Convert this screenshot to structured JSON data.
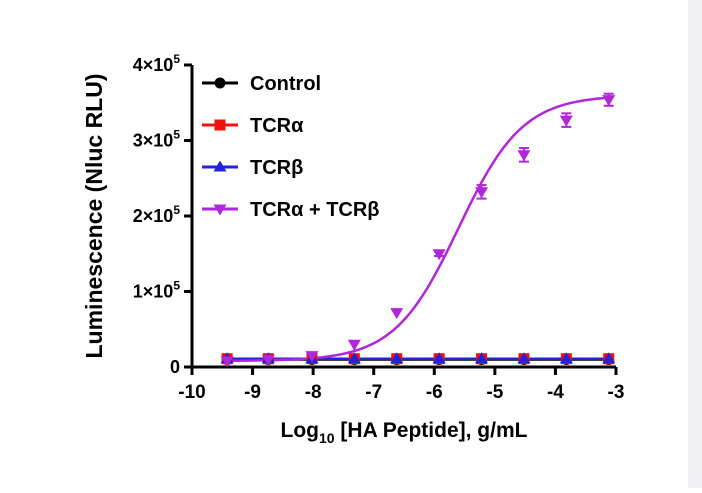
{
  "chart_data": {
    "type": "scatter",
    "xlabel_main": "Log",
    "xlabel_sub": "10",
    "xlabel_rest": " [HA Peptide], g/mL",
    "ylabel": "Luminescence (Nluc RLU)",
    "xlim": [
      -10,
      -3
    ],
    "ylim": [
      0,
      400000
    ],
    "x_ticks": [
      -10,
      -9,
      -8,
      -7,
      -6,
      -5,
      -4,
      -3
    ],
    "x_tick_labels": [
      "-10",
      "-9",
      "-8",
      "-7",
      "-6",
      "-5",
      "-4",
      "-3"
    ],
    "y_ticks": [
      {
        "value": 0,
        "label": "0",
        "exp": ""
      },
      {
        "value": 100000,
        "label": "1×10",
        "exp": "5"
      },
      {
        "value": 200000,
        "label": "2×10",
        "exp": "5"
      },
      {
        "value": 300000,
        "label": "3×10",
        "exp": "5"
      },
      {
        "value": 400000,
        "label": "4×10",
        "exp": "5"
      }
    ],
    "grid": false,
    "legend_position": "top-left",
    "series": [
      {
        "name": "Control",
        "color": "#000000",
        "marker": "circle",
        "x": [
          -9.42,
          -8.74,
          -8.02,
          -7.32,
          -6.62,
          -5.92,
          -5.22,
          -4.52,
          -3.82,
          -3.12
        ],
        "y": [
          10000,
          10000,
          10000,
          10000,
          10000,
          10000,
          10000,
          10000,
          10000,
          10000
        ],
        "err": [
          0,
          0,
          0,
          0,
          0,
          0,
          0,
          0,
          0,
          0
        ],
        "fit": "flat"
      },
      {
        "name": "TCRα",
        "color": "#ee1111",
        "marker": "square",
        "x": [
          -9.42,
          -8.74,
          -8.02,
          -7.32,
          -6.62,
          -5.92,
          -5.22,
          -4.52,
          -3.82,
          -3.12
        ],
        "y": [
          11000,
          11000,
          11000,
          11000,
          11000,
          11000,
          11000,
          11000,
          11000,
          11000
        ],
        "err": [
          0,
          0,
          0,
          0,
          0,
          0,
          0,
          0,
          0,
          0
        ],
        "fit": "flat"
      },
      {
        "name": "TCRβ",
        "color": "#2222dd",
        "marker": "triangle-up",
        "x": [
          -9.42,
          -8.74,
          -8.02,
          -7.32,
          -6.62,
          -5.92,
          -5.22,
          -4.52,
          -3.82,
          -3.12
        ],
        "y": [
          11000,
          11000,
          11000,
          11000,
          11000,
          11000,
          11000,
          11000,
          11000,
          11000
        ],
        "err": [
          0,
          0,
          0,
          0,
          0,
          0,
          0,
          0,
          0,
          0
        ],
        "fit": "flat"
      },
      {
        "name": "TCRα + TCRβ",
        "color": "#b026d9",
        "marker": "triangle-down",
        "x": [
          -9.42,
          -8.74,
          -8.02,
          -7.32,
          -6.62,
          -5.92,
          -5.22,
          -4.52,
          -3.82,
          -3.12
        ],
        "y": [
          8000,
          10000,
          15000,
          30000,
          72000,
          150000,
          232000,
          281000,
          327000,
          354000
        ],
        "err": [
          0,
          0,
          0,
          0,
          0,
          3000,
          9000,
          9000,
          9000,
          8000
        ],
        "fit": "sigmoid",
        "fit_params": {
          "bottom": 8000,
          "top": 360000,
          "logEC50": -5.6,
          "hill": 0.82
        }
      }
    ]
  }
}
